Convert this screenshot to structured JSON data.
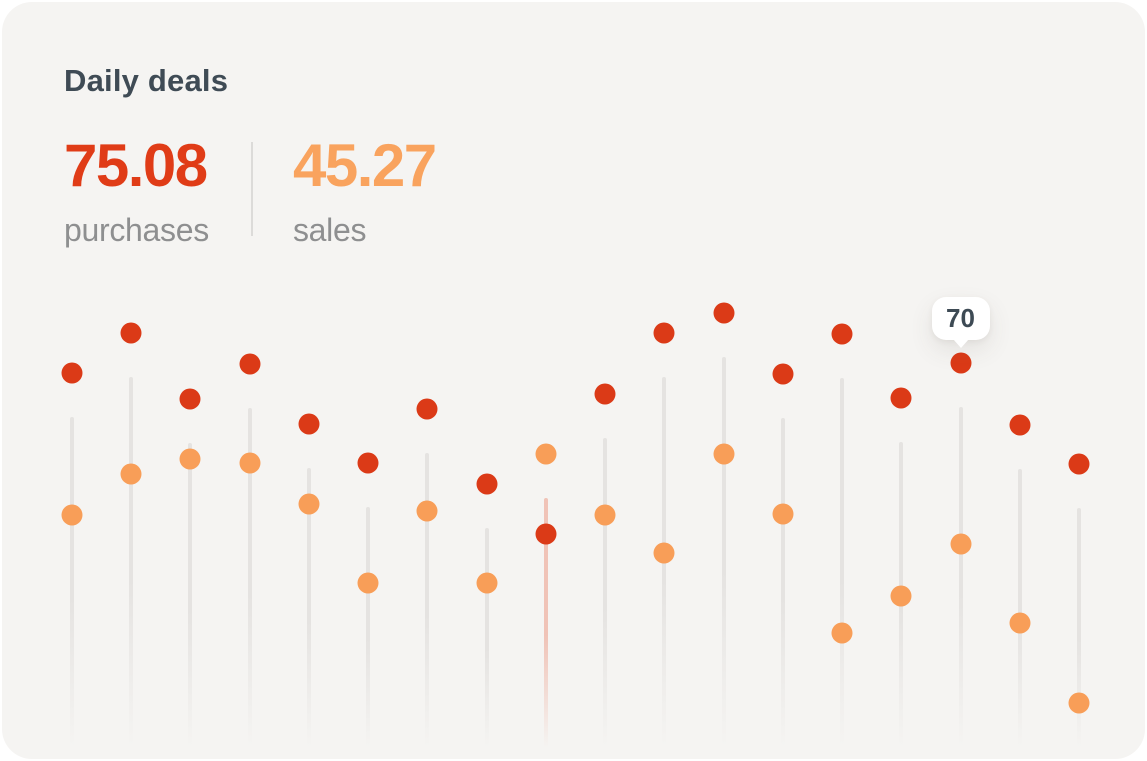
{
  "card": {
    "title": "Daily deals",
    "stats": [
      {
        "value": "75.08",
        "label": "purchases",
        "color": "#e03c17"
      },
      {
        "value": "45.27",
        "label": "sales",
        "color": "#f9a35e"
      }
    ]
  },
  "chart_data": {
    "type": "scatter",
    "subtype": "lollipop",
    "points": 18,
    "x_labels_visible": false,
    "axes_visible": false,
    "grid": false,
    "legend": "none",
    "ylim": [
      0,
      85
    ],
    "series": [
      {
        "name": "purchases",
        "color": "#db3a17",
        "values": [
          68.1,
          75.7,
          63.2,
          69.8,
          58.4,
          51.0,
          61.3,
          47.1,
          37.6,
          64.1,
          75.7,
          79.5,
          67.9,
          75.5,
          63.4,
          70,
          58.3,
          50.9
        ]
      },
      {
        "name": "sales",
        "color": "#f89e58",
        "values": [
          41.2,
          49.0,
          51.8,
          51.0,
          43.3,
          28.3,
          41.9,
          28.3,
          52.8,
          41.2,
          34.0,
          52.8,
          41.4,
          18.8,
          25.8,
          35.7,
          20.7,
          5.5
        ]
      }
    ],
    "stem_color": "#e5e3e1",
    "highlight_stem_color": "#f0c3b7",
    "highlighted_point": 9,
    "tooltip": {
      "point": 16,
      "series": "purchases",
      "value": "70"
    }
  }
}
